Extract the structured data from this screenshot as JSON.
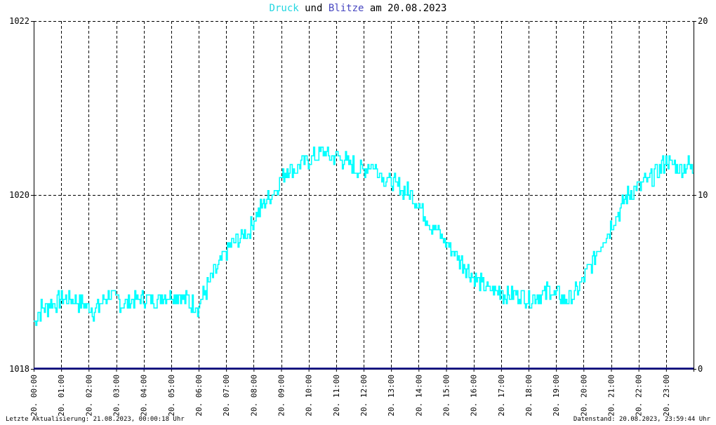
{
  "title": {
    "part1": "Druck",
    "part2": " und ",
    "part3": "Blitze",
    "part4": " am 20.08.2023"
  },
  "footer": {
    "left": "Letzte Aktualisierung: 21.08.2023, 00:00:18 Uhr",
    "right": "Datenstand: 20.08.2023, 23:59:44 Uhr"
  },
  "colors": {
    "pressure": "#00ffff",
    "lightning": "#000080",
    "title_pressure": "#22d6e0",
    "title_lightning": "#4646c0",
    "grid": "#000000",
    "axis": "#000000"
  },
  "chart_data": {
    "type": "line",
    "title": "Druck und Blitze am 20.08.2023",
    "x_ticks": [
      "20. 00:00",
      "20. 01:00",
      "20. 02:00",
      "20. 03:00",
      "20. 04:00",
      "20. 05:00",
      "20. 06:00",
      "20. 07:00",
      "20. 08:00",
      "20. 09:00",
      "20. 10:00",
      "20. 11:00",
      "20. 12:00",
      "20. 13:00",
      "20. 14:00",
      "20. 15:00",
      "20. 16:00",
      "20. 17:00",
      "20. 18:00",
      "20. 19:00",
      "20. 20:00",
      "20. 21:00",
      "20. 22:00",
      "20. 23:00"
    ],
    "xlim_hours": [
      0,
      24
    ],
    "y_left": {
      "ticks": [
        "1018",
        "1020",
        "1022"
      ],
      "ylim": [
        1018,
        1022
      ]
    },
    "y_right": {
      "ticks": [
        "0",
        "10",
        "20"
      ],
      "ylim": [
        0,
        20
      ]
    },
    "grid": true,
    "series": [
      {
        "name": "Druck",
        "axis": "left",
        "x_hours": [
          0.0,
          0.25,
          0.5,
          0.75,
          1.0,
          1.25,
          1.5,
          1.75,
          2.0,
          2.25,
          2.5,
          2.75,
          3.0,
          3.25,
          3.5,
          3.75,
          4.0,
          4.25,
          4.5,
          4.75,
          5.0,
          5.25,
          5.5,
          5.75,
          6.0,
          6.25,
          6.5,
          6.75,
          7.0,
          7.25,
          7.5,
          7.75,
          8.0,
          8.25,
          8.5,
          8.75,
          9.0,
          9.25,
          9.5,
          9.75,
          10.0,
          10.25,
          10.5,
          10.75,
          11.0,
          11.25,
          11.5,
          11.75,
          12.0,
          12.25,
          12.5,
          12.75,
          13.0,
          13.25,
          13.5,
          13.75,
          14.0,
          14.25,
          14.5,
          14.75,
          15.0,
          15.25,
          15.5,
          15.75,
          16.0,
          16.25,
          16.5,
          16.75,
          17.0,
          17.25,
          17.5,
          17.75,
          18.0,
          18.25,
          18.5,
          18.75,
          19.0,
          19.25,
          19.5,
          19.75,
          20.0,
          20.25,
          20.5,
          20.75,
          21.0,
          21.25,
          21.5,
          21.75,
          22.0,
          22.25,
          22.5,
          22.75,
          23.0,
          23.25,
          23.5,
          23.75,
          24.0
        ],
        "values": [
          1018.55,
          1018.68,
          1018.72,
          1018.75,
          1018.8,
          1018.78,
          1018.8,
          1018.75,
          1018.7,
          1018.66,
          1018.78,
          1018.85,
          1018.8,
          1018.75,
          1018.78,
          1018.8,
          1018.82,
          1018.78,
          1018.8,
          1018.85,
          1018.85,
          1018.85,
          1018.8,
          1018.75,
          1018.72,
          1018.9,
          1019.05,
          1019.2,
          1019.35,
          1019.45,
          1019.5,
          1019.55,
          1019.7,
          1019.85,
          1019.95,
          1020.05,
          1020.2,
          1020.3,
          1020.3,
          1020.35,
          1020.4,
          1020.45,
          1020.5,
          1020.45,
          1020.45,
          1020.4,
          1020.35,
          1020.3,
          1020.3,
          1020.35,
          1020.3,
          1020.2,
          1020.15,
          1020.1,
          1020.05,
          1020.0,
          1019.9,
          1019.75,
          1019.65,
          1019.55,
          1019.45,
          1019.35,
          1019.25,
          1019.15,
          1019.05,
          1018.98,
          1018.92,
          1018.9,
          1018.88,
          1018.85,
          1018.85,
          1018.83,
          1018.82,
          1018.83,
          1018.85,
          1018.9,
          1018.85,
          1018.8,
          1018.82,
          1018.9,
          1019.05,
          1019.2,
          1019.35,
          1019.5,
          1019.65,
          1019.8,
          1019.95,
          1020.05,
          1020.1,
          1020.15,
          1020.2,
          1020.3,
          1020.4,
          1020.35,
          1020.3,
          1020.35,
          1020.3
        ]
      },
      {
        "name": "Blitze",
        "axis": "right",
        "x_hours": [
          0,
          24
        ],
        "values": [
          0,
          0
        ]
      }
    ]
  }
}
